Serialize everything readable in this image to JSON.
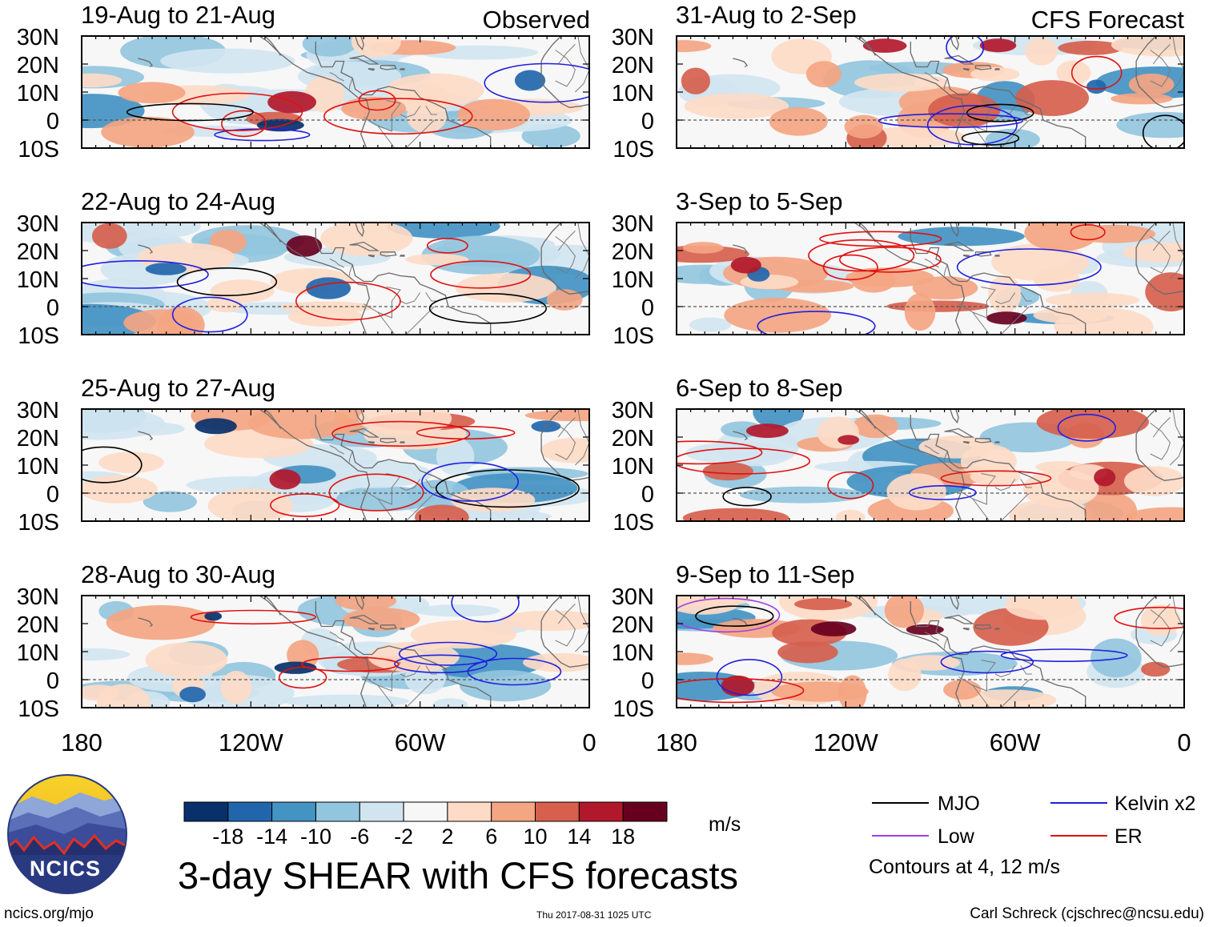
{
  "labels": {
    "observed": "Observed",
    "forecast": "CFS Forecast",
    "main_title": "3-day SHEAR with CFS forecasts",
    "url": "ncics.org/mjo",
    "timestamp": "Thu 2017-08-31 1025 UTC",
    "author": "Carl Schreck (cjschrec@ncsu.edu)",
    "units": "m/s",
    "logo_text": "NCICS"
  },
  "chart_data": {
    "type": "heatmap",
    "variable": "3-day SHEAR",
    "units": "m/s",
    "lat_ticks": [
      "30N",
      "20N",
      "10N",
      "0",
      "10S"
    ],
    "lon_ticks": [
      "180",
      "120W",
      "60W",
      "0"
    ],
    "lat_range": [
      -10,
      30
    ],
    "lon_range": [
      -180,
      0
    ],
    "panels": [
      {
        "title": "19-Aug to 21-Aug",
        "column": "Observed"
      },
      {
        "title": "22-Aug to 24-Aug",
        "column": "Observed"
      },
      {
        "title": "25-Aug to 27-Aug",
        "column": "Observed"
      },
      {
        "title": "28-Aug to 30-Aug",
        "column": "Observed"
      },
      {
        "title": "31-Aug to 2-Sep",
        "column": "CFS Forecast"
      },
      {
        "title": "3-Sep to 5-Sep",
        "column": "CFS Forecast"
      },
      {
        "title": "6-Sep to 8-Sep",
        "column": "CFS Forecast"
      },
      {
        "title": "9-Sep to 11-Sep",
        "column": "CFS Forecast"
      }
    ],
    "colorbar": {
      "ticks": [
        "-18",
        "-14",
        "-10",
        "-6",
        "-2",
        "2",
        "6",
        "10",
        "14",
        "18"
      ],
      "colors": [
        "#08306b",
        "#2166ac",
        "#4393c3",
        "#92c5de",
        "#d1e5f0",
        "#f7f7f7",
        "#fddbc7",
        "#f4a582",
        "#d6604d",
        "#b2182b",
        "#67001f"
      ]
    },
    "contour_legend": [
      {
        "label": "MJO",
        "color": "#000000"
      },
      {
        "label": "Kelvin x2",
        "color": "#1f1fe0"
      },
      {
        "label": "Low",
        "color": "#a040e0"
      },
      {
        "label": "ER",
        "color": "#e01010"
      }
    ],
    "contour_note": "Contours at 4, 12 m/s"
  }
}
